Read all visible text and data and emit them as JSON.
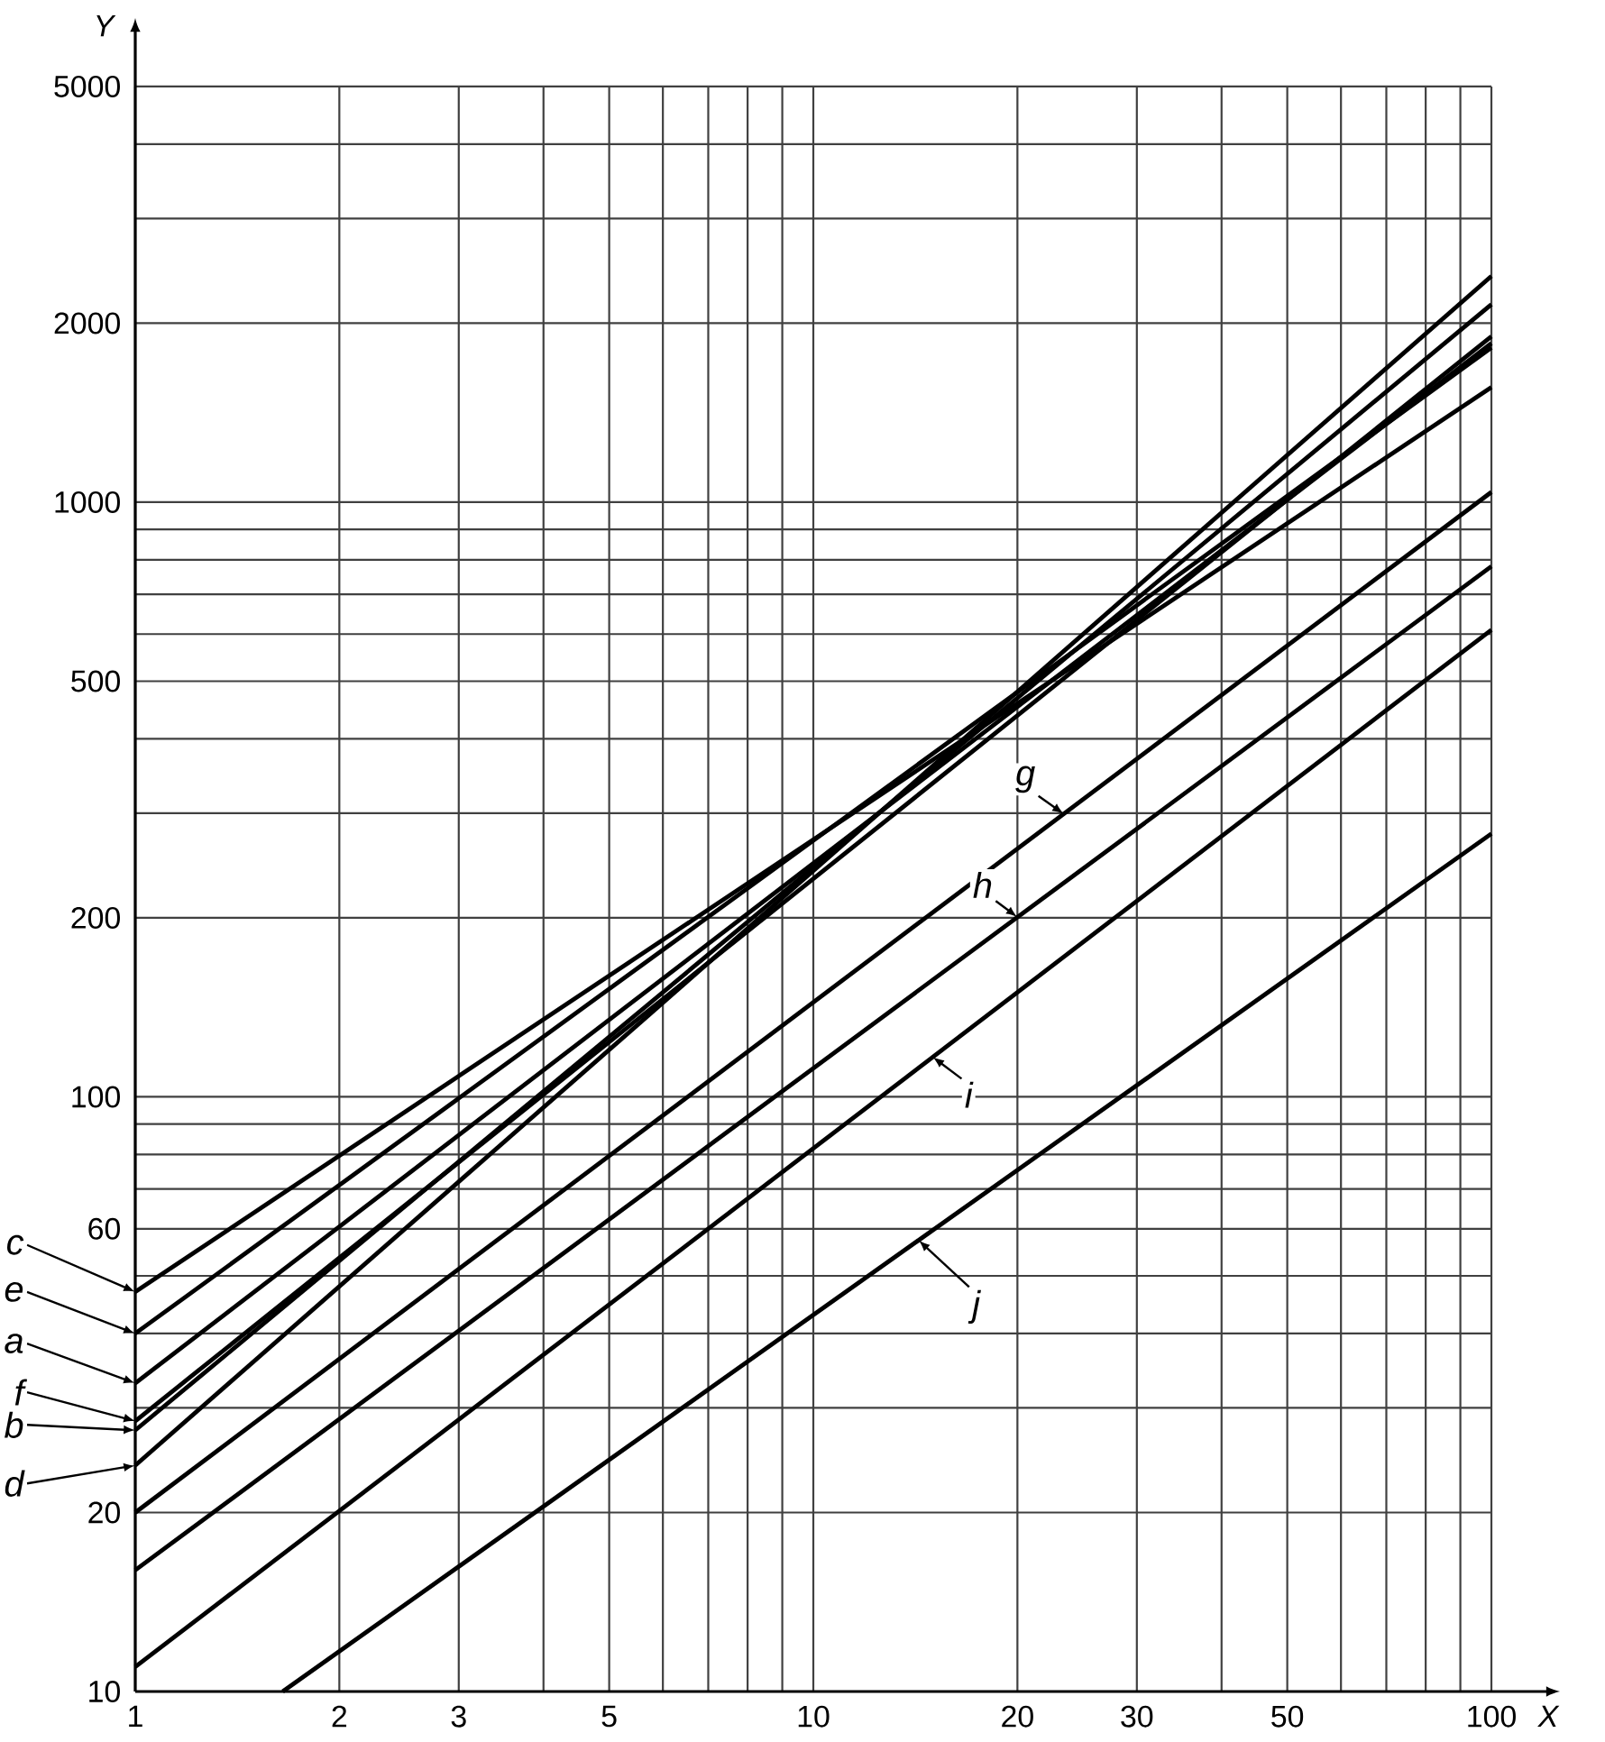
{
  "chart_data": {
    "type": "line",
    "xlabel": "X",
    "ylabel": "Y",
    "log": "xy",
    "grid": true,
    "marker": "none",
    "legend": "left",
    "xlim": [
      1,
      100
    ],
    "ylim": [
      10,
      5000
    ],
    "xticks": [
      1,
      2,
      3,
      {
        "value": 4,
        "label": null
      },
      5,
      {
        "value": 6,
        "label": null
      },
      {
        "value": 7,
        "label": null
      },
      {
        "value": 8,
        "label": null
      },
      {
        "value": 9,
        "label": null
      },
      10,
      20,
      30,
      {
        "value": 40,
        "label": null
      },
      50,
      {
        "value": 60,
        "label": null
      },
      {
        "value": 70,
        "label": null
      },
      {
        "value": 80,
        "label": null
      },
      {
        "value": 90,
        "label": null
      },
      100
    ],
    "yticks": [
      10,
      20,
      {
        "value": 30,
        "label": null
      },
      {
        "value": 40,
        "label": null
      },
      {
        "value": 50,
        "label": null
      },
      60,
      {
        "value": 70,
        "label": null
      },
      {
        "value": 80,
        "label": null
      },
      {
        "value": 90,
        "label": null
      },
      100,
      200,
      {
        "value": 300,
        "label": null
      },
      {
        "value": 400,
        "label": null
      },
      500,
      {
        "value": 600,
        "label": null
      },
      {
        "value": 700,
        "label": null
      },
      {
        "value": 800,
        "label": null
      },
      {
        "value": 900,
        "label": null
      },
      1000,
      2000,
      {
        "value": 3000,
        "label": null
      },
      {
        "value": 4000,
        "label": null
      },
      5000
    ],
    "series": [
      {
        "name": "a",
        "color": "#000000",
        "x": [
          1,
          100
        ],
        "values": [
          33,
          1850
        ]
      },
      {
        "name": "b",
        "color": "#000000",
        "x": [
          1,
          100
        ],
        "values": [
          27.5,
          2150
        ]
      },
      {
        "name": "c",
        "color": "#000000",
        "x": [
          1,
          100
        ],
        "values": [
          47,
          1560
        ]
      },
      {
        "name": "d",
        "color": "#000000",
        "x": [
          1,
          100
        ],
        "values": [
          24,
          2400
        ]
      },
      {
        "name": "e",
        "color": "#000000",
        "x": [
          1,
          100
        ],
        "values": [
          40,
          1820
        ]
      },
      {
        "name": "f",
        "color": "#000000",
        "x": [
          1,
          100
        ],
        "values": [
          28.5,
          1900
        ]
      },
      {
        "name": "g",
        "color": "#000000",
        "x": [
          1,
          100
        ],
        "values": [
          20,
          1040
        ]
      },
      {
        "name": "h",
        "color": "#000000",
        "x": [
          1,
          100
        ],
        "values": [
          16,
          780
        ]
      },
      {
        "name": "i",
        "color": "#000000",
        "x": [
          1,
          100
        ],
        "values": [
          11,
          610
        ]
      },
      {
        "name": "j",
        "color": "#000000",
        "x": [
          1.65,
          100
        ],
        "values": [
          10,
          277
        ]
      }
    ]
  }
}
